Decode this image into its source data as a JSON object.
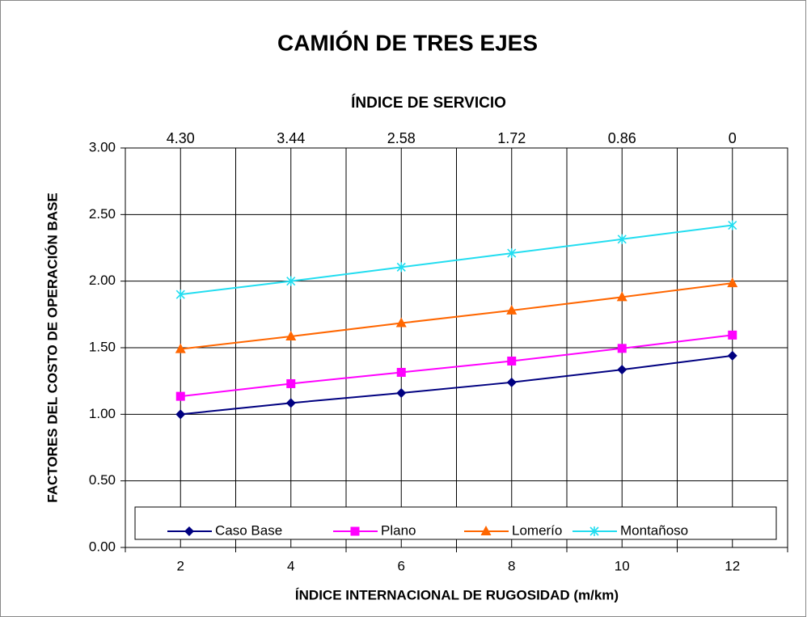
{
  "chart_data": {
    "type": "line",
    "title": "CAMIÓN DE TRES EJES",
    "x2_label": "ÍNDICE DE SERVICIO",
    "x_label": "ÍNDICE INTERNACIONAL DE RUGOSIDAD (m/km)",
    "y_label": "FACTORES DEL COSTO DE OPERACIÓN BASE",
    "x": [
      2,
      4,
      6,
      8,
      10,
      12
    ],
    "xlim": [
      1,
      13
    ],
    "xticks": [
      2,
      4,
      6,
      8,
      10,
      12
    ],
    "x_minor_ticks": [
      1,
      3,
      5,
      7,
      9,
      11,
      13
    ],
    "x2lim": [
      4.73,
      -0.43
    ],
    "x2ticks": [
      {
        "value": 4.3,
        "label": "4.30"
      },
      3.44,
      2.58,
      1.72,
      0.86,
      0
    ],
    "ylim": [
      0,
      3
    ],
    "yticks": [
      {
        "value": 0,
        "label": "0.00"
      },
      {
        "value": 0.5,
        "label": "0.50"
      },
      {
        "value": 1,
        "label": "1.00"
      },
      {
        "value": 1.5,
        "label": "1.50"
      },
      {
        "value": 2,
        "label": "2.00"
      },
      {
        "value": 2.5,
        "label": "2.50"
      },
      {
        "value": 3,
        "label": "3.00"
      }
    ],
    "grid": true,
    "legend": "bottom",
    "series": [
      {
        "name": "Caso Base",
        "color": "#000080",
        "marker": "diamond",
        "values": [
          1.0,
          1.085,
          1.16,
          1.24,
          1.335,
          1.44
        ]
      },
      {
        "name": "Plano",
        "color": "#ff00ff",
        "marker": "square",
        "values": [
          1.135,
          1.23,
          1.315,
          1.4,
          1.495,
          1.595
        ]
      },
      {
        "name": "Lomerío",
        "color": "#ff6600",
        "marker": "triangle",
        "values": [
          1.49,
          1.585,
          1.685,
          1.78,
          1.88,
          1.985
        ]
      },
      {
        "name": "Montañoso",
        "color": "#22ddf0",
        "marker": "star",
        "values": [
          1.9,
          2.0,
          2.105,
          2.21,
          2.315,
          2.42
        ]
      }
    ]
  }
}
